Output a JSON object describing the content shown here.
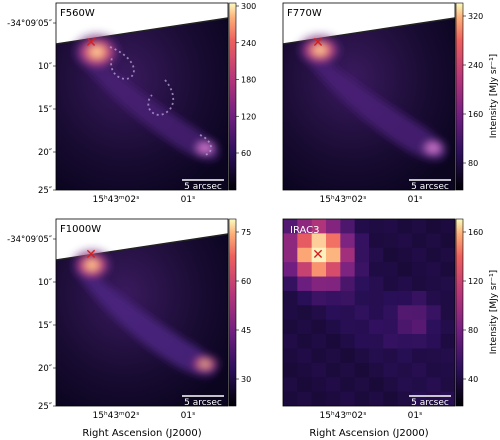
{
  "panels": [
    {
      "name": "F560W",
      "label": "F560W",
      "label_color": "#000000",
      "colorbar_ticks": [
        "300",
        "240",
        "180",
        "120",
        "60"
      ],
      "colorbar_label": "",
      "show_ra_labels": false
    },
    {
      "name": "F770W",
      "label": "F770W",
      "label_color": "#000000",
      "colorbar_ticks": [
        "320",
        "240",
        "160",
        "80"
      ],
      "colorbar_label": "Intensity [MJy sr⁻¹]",
      "show_ra_labels": false
    },
    {
      "name": "F1000W",
      "label": "F1000W",
      "label_color": "#000000",
      "colorbar_ticks": [
        "75",
        "60",
        "45",
        "30"
      ],
      "colorbar_label": "",
      "show_ra_labels": true
    },
    {
      "name": "IRAC3",
      "label": "IRAC3",
      "label_color": "#ffffff",
      "colorbar_ticks": [
        "160",
        "120",
        "80",
        "40"
      ],
      "colorbar_label": "Intensity [MJy sr⁻¹]",
      "show_ra_labels": true
    }
  ],
  "dec_ticks": [
    "-34°09′05″",
    "10″",
    "15″",
    "20″",
    "25″"
  ],
  "ra_ticks": [
    "15ʰ43ᵐ02ˢ",
    "01ˢ"
  ],
  "xlabel": "Right Ascension (J2000)",
  "scalebar_label": "5 arcsec",
  "colors": {
    "bg_dark": "#0d0621",
    "hot": "#fde8a6",
    "marker": "#d42020"
  }
}
